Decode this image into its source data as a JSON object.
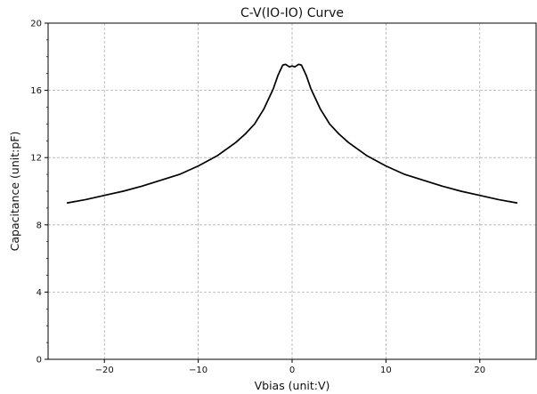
{
  "chart_data": {
    "type": "line",
    "title": "C-V(IO-IO) Curve",
    "xlabel": "Vbias (unit:V)",
    "ylabel": "Capacitance (unit:pF)",
    "xlim": [
      -26,
      26
    ],
    "ylim": [
      0,
      20
    ],
    "x_ticks": [
      -20,
      -10,
      0,
      10,
      20
    ],
    "x_tick_labels": [
      "−20",
      "−10",
      "0",
      "10",
      "20"
    ],
    "y_ticks": [
      0,
      4,
      8,
      12,
      16,
      20
    ],
    "y_tick_labels": [
      "0",
      "4",
      "8",
      "12",
      "16",
      "20"
    ],
    "grid": true,
    "series": [
      {
        "color": "#000000",
        "x": [
          -24,
          -22,
          -20,
          -18,
          -16,
          -14,
          -12,
          -10,
          -8,
          -6,
          -5,
          -4,
          -3,
          -2,
          -1.5,
          -1,
          -0.7,
          -0.3,
          0,
          0.3,
          0.7,
          1,
          1.5,
          2,
          3,
          4,
          5,
          6,
          8,
          10,
          12,
          14,
          16,
          18,
          20,
          22,
          24
        ],
        "y": [
          9.3,
          9.5,
          9.75,
          10.0,
          10.3,
          10.65,
          11.0,
          11.5,
          12.1,
          12.9,
          13.4,
          14.0,
          14.9,
          16.1,
          16.9,
          17.5,
          17.55,
          17.4,
          17.45,
          17.4,
          17.55,
          17.5,
          16.9,
          16.1,
          14.9,
          14.0,
          13.4,
          12.9,
          12.1,
          11.5,
          11.0,
          10.65,
          10.3,
          10.0,
          9.75,
          9.5,
          9.3
        ]
      }
    ]
  }
}
